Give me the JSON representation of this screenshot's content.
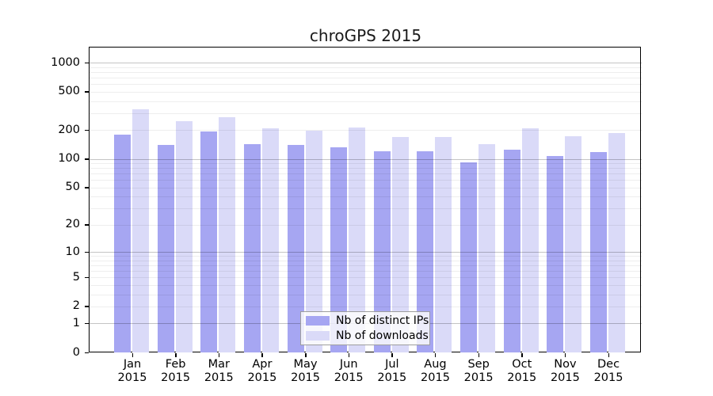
{
  "title": "chroGPS 2015",
  "legend": {
    "items": [
      {
        "label": "Nb of distinct IPs",
        "color": "#a6a6f2"
      },
      {
        "label": "Nb of downloads",
        "color": "#dadaf8"
      }
    ]
  },
  "axes": {
    "y_tick_labels": [
      "1000",
      "500",
      "200",
      "100",
      "50",
      "20",
      "10",
      "5",
      "2",
      "1",
      "0"
    ],
    "x_months": [
      "Jan",
      "Feb",
      "Mar",
      "Apr",
      "May",
      "Jun",
      "Jul",
      "Aug",
      "Sep",
      "Oct",
      "Nov",
      "Dec"
    ],
    "x_year": "2015"
  },
  "chart_data": {
    "type": "bar",
    "title": "chroGPS 2015",
    "categories": [
      "Jan 2015",
      "Feb 2015",
      "Mar 2015",
      "Apr 2015",
      "May 2015",
      "Jun 2015",
      "Jul 2015",
      "Aug 2015",
      "Sep 2015",
      "Oct 2015",
      "Nov 2015",
      "Dec 2015"
    ],
    "series": [
      {
        "name": "Nb of distinct IPs",
        "color": "#a6a6f2",
        "values": [
          180,
          140,
          192,
          143,
          140,
          133,
          120,
          120,
          92,
          125,
          107,
          119
        ]
      },
      {
        "name": "Nb of downloads",
        "color": "#dadaf8",
        "values": [
          330,
          250,
          270,
          207,
          197,
          212,
          171,
          168,
          142,
          207,
          172,
          186
        ]
      }
    ],
    "yscale": "log1p",
    "ylim": [
      0,
      1440
    ],
    "y_ticks": [
      1000,
      500,
      200,
      100,
      50,
      20,
      10,
      5,
      2,
      1,
      0
    ],
    "y_major_gridlines": [
      1,
      10,
      100,
      1000
    ],
    "grid": "horizontal",
    "legend_position": "inside-bottom-center",
    "xlabel": "",
    "ylabel": ""
  }
}
